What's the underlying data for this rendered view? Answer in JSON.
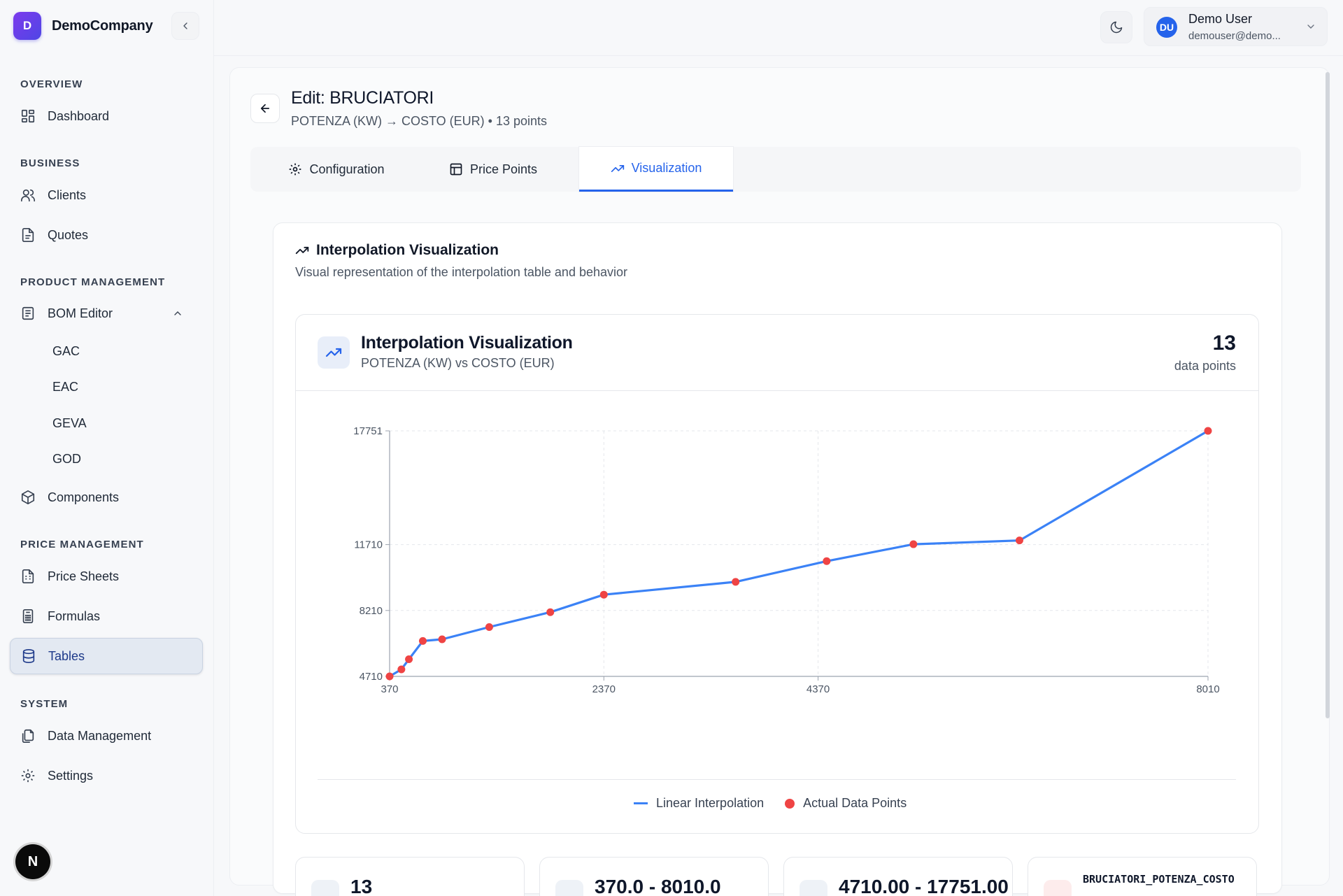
{
  "brand": {
    "initial": "D",
    "name": "DemoCompany"
  },
  "sidebar": {
    "sections": [
      {
        "title": "OVERVIEW"
      },
      {
        "title": "BUSINESS"
      },
      {
        "title": "PRODUCT MANAGEMENT"
      },
      {
        "title": "PRICE MANAGEMENT"
      },
      {
        "title": "SYSTEM"
      }
    ],
    "items": {
      "dashboard": "Dashboard",
      "clients": "Clients",
      "quotes": "Quotes",
      "bom_editor": "BOM Editor",
      "bom_children": [
        "GAC",
        "EAC",
        "GEVA",
        "GOD"
      ],
      "components": "Components",
      "price_sheets": "Price Sheets",
      "formulas": "Formulas",
      "tables": "Tables",
      "data_management": "Data Management",
      "settings": "Settings"
    },
    "bottom_badge": "N"
  },
  "header": {
    "user": {
      "initials": "DU",
      "name": "Demo User",
      "email": "demouser@demo..."
    }
  },
  "page": {
    "title": "Edit: BRUCIATORI",
    "subtitle": "POTENZA (KW) → COSTO (EUR) • 13 points",
    "tabs": [
      "Configuration",
      "Price Points",
      "Visualization"
    ],
    "active_tab": "Visualization"
  },
  "card": {
    "title": "Interpolation Visualization",
    "description": "Visual representation of the interpolation table and behavior"
  },
  "viz": {
    "title": "Interpolation Visualization",
    "subtitle": "POTENZA (KW) vs COSTO (EUR)",
    "count": "13",
    "count_label": "data points",
    "legend": {
      "line": "Linear Interpolation",
      "points": "Actual Data Points"
    }
  },
  "stats": {
    "count": "13",
    "x_range": "370.0 - 8010.0",
    "y_range": "4710.00 - 17751.00",
    "table_name": "BRUCIATORI_POTENZA_COSTO"
  },
  "colors": {
    "accent": "#2563eb",
    "line": "#3b82f6",
    "points": "#ef4444"
  },
  "chart_data": {
    "type": "line",
    "xlabel": "",
    "ylabel": "",
    "xlim": [
      370,
      8010
    ],
    "ylim": [
      4710,
      17751
    ],
    "x_ticks": [
      370,
      2370,
      4370,
      8010
    ],
    "y_ticks": [
      4710,
      8210,
      11710,
      17751
    ],
    "grid": true,
    "legend_position": "bottom",
    "series": [
      {
        "name": "Linear Interpolation",
        "x": [
          370,
          480,
          550,
          680,
          860,
          1300,
          1870,
          2370,
          3600,
          4450,
          5260,
          6250,
          8010
        ],
        "y": [
          4710,
          5080,
          5620,
          6590,
          6680,
          7330,
          8120,
          9050,
          9730,
          10830,
          11730,
          11930,
          17751
        ]
      }
    ],
    "points_series": "Actual Data Points"
  }
}
